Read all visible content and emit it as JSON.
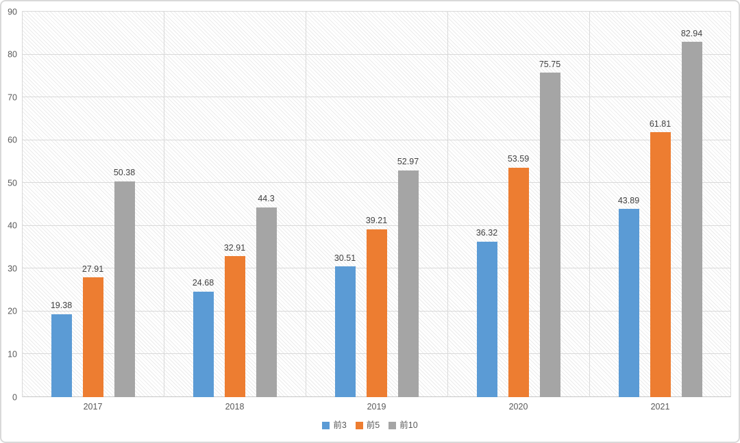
{
  "chart_data": {
    "type": "bar",
    "categories": [
      "2017",
      "2018",
      "2019",
      "2020",
      "2021"
    ],
    "series": [
      {
        "name": "前3",
        "color": "#5B9BD5",
        "values": [
          19.38,
          24.68,
          30.51,
          36.32,
          43.89
        ]
      },
      {
        "name": "前5",
        "color": "#ED7D31",
        "values": [
          27.91,
          32.91,
          39.21,
          53.59,
          61.81
        ]
      },
      {
        "name": "前10",
        "color": "#A5A5A5",
        "values": [
          50.38,
          44.3,
          52.97,
          75.75,
          82.94
        ]
      }
    ],
    "title": "",
    "xlabel": "",
    "ylabel": "",
    "ylim": [
      0,
      90
    ],
    "ytick_step": 10,
    "ytick_labels": [
      "0",
      "10",
      "20",
      "30",
      "40",
      "50",
      "60",
      "70",
      "80",
      "90"
    ],
    "grid": "horizontal-and-category-boundaries",
    "plot_background": "diagonal-hatch",
    "legend_position": "bottom-center",
    "data_labels": true
  },
  "colors": {
    "series_blue": "#5B9BD5",
    "series_orange": "#ED7D31",
    "series_gray": "#A5A5A5",
    "gridline": "#d9d9d9",
    "axis_line": "#c6c6c6",
    "axis_text": "#595959",
    "data_label_text": "#404040",
    "frame_border": "#d9d9d9",
    "hatch_line": "#ebebeb",
    "background": "#ffffff"
  }
}
